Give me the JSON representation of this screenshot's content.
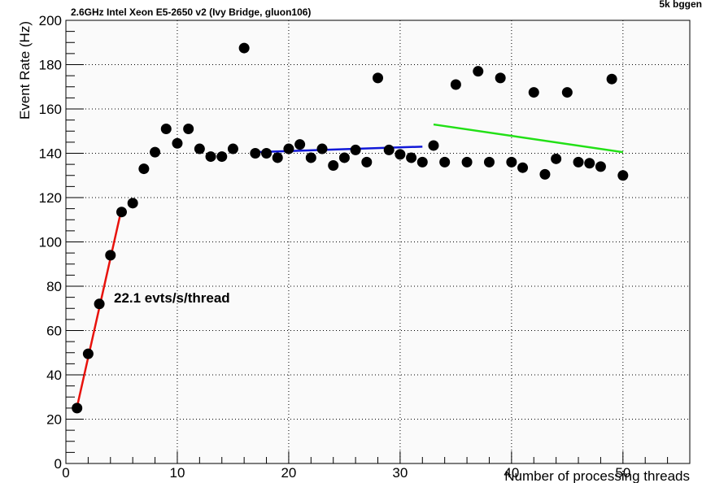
{
  "chart_data": {
    "type": "scatter",
    "title": "2.6GHz Intel Xeon E5-2650 v2 (Ivy Bridge, gluon106)",
    "corner_label": "5k bggen",
    "xlabel": "Number of processing threads",
    "ylabel": "Event Rate (Hz)",
    "xlim": [
      0,
      56
    ],
    "ylim": [
      0,
      200
    ],
    "x_ticks": [
      0,
      10,
      20,
      30,
      40,
      50
    ],
    "y_ticks": [
      0,
      20,
      40,
      60,
      80,
      100,
      120,
      140,
      160,
      180,
      200
    ],
    "grid": true,
    "grid_style": "dotted",
    "annotation": "22.1 evts/s/thread",
    "points": [
      [
        1,
        25
      ],
      [
        2,
        49.5
      ],
      [
        3,
        72
      ],
      [
        4,
        94
      ],
      [
        5,
        113.5
      ],
      [
        6,
        117.5
      ],
      [
        7,
        133
      ],
      [
        8,
        140.5
      ],
      [
        9,
        151
      ],
      [
        10,
        144.5
      ],
      [
        11,
        151
      ],
      [
        12,
        142
      ],
      [
        13,
        138.5
      ],
      [
        14,
        138.5
      ],
      [
        15,
        142
      ],
      [
        16,
        187.5
      ],
      [
        17,
        140
      ],
      [
        18,
        140
      ],
      [
        19,
        138
      ],
      [
        20,
        142
      ],
      [
        21,
        144
      ],
      [
        22,
        138
      ],
      [
        23,
        142
      ],
      [
        24,
        134.5
      ],
      [
        25,
        138
      ],
      [
        26,
        141.5
      ],
      [
        27,
        136
      ],
      [
        28,
        174
      ],
      [
        29,
        141.5
      ],
      [
        30,
        139.5
      ],
      [
        31,
        138
      ],
      [
        32,
        136
      ],
      [
        33,
        143.5
      ],
      [
        34,
        136
      ],
      [
        35,
        171
      ],
      [
        36,
        136
      ],
      [
        37,
        177
      ],
      [
        38,
        136
      ],
      [
        39,
        174
      ],
      [
        40,
        136
      ],
      [
        41,
        133.5
      ],
      [
        42,
        167.5
      ],
      [
        43,
        130.5
      ],
      [
        44,
        137.5
      ],
      [
        45,
        167.5
      ],
      [
        46,
        136
      ],
      [
        47,
        135.5
      ],
      [
        48,
        134
      ],
      [
        49,
        173.5
      ],
      [
        50,
        130
      ]
    ],
    "fit_lines": [
      {
        "color": "#e8120c",
        "x": [
          1,
          5
        ],
        "y": [
          25.5,
          115
        ]
      },
      {
        "color": "#1018d8",
        "x": [
          17,
          32
        ],
        "y": [
          140.5,
          143
        ]
      },
      {
        "color": "#22e016",
        "x": [
          33,
          50
        ],
        "y": [
          153,
          140.5
        ]
      }
    ],
    "marker_color": "#000000"
  }
}
